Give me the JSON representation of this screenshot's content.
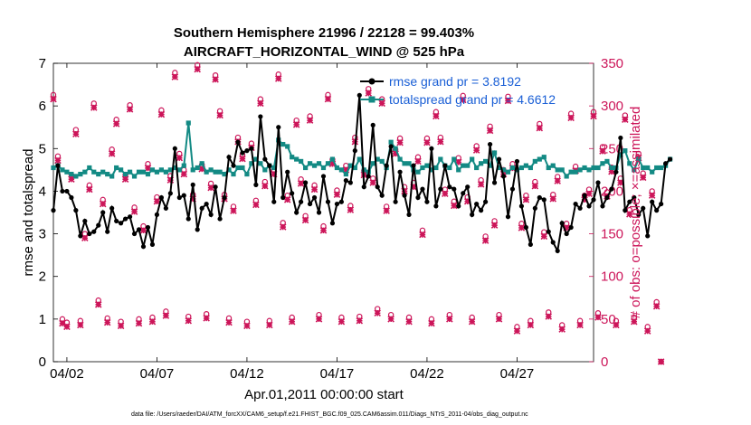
{
  "chart_data": {
    "type": "line",
    "title": "Southern Hemisphere 21996 / 22128 = 99.403%",
    "subtitle": "AIRCRAFT_HORIZONTAL_WIND @ 525 hPa",
    "xlabel": "Apr.01,2011 00:00:00 start",
    "ylabel_left": "rmse and totalspread",
    "ylabel_right": "# of obs: o=possible; ×=assimilated",
    "footnote": "data file: /Users/raeder/DAI/ATM_forcXX/CAM6_setup/f.e21.FHIST_BGC.f09_025.CAM6assim.011/Diags_NTrS_2011-04/obs_diag_output.nc",
    "x_ticks": [
      {
        "label": "04/02",
        "day": 2
      },
      {
        "label": "04/07",
        "day": 7
      },
      {
        "label": "04/12",
        "day": 12
      },
      {
        "label": "04/17",
        "day": 17
      },
      {
        "label": "04/22",
        "day": 22
      },
      {
        "label": "04/27",
        "day": 27
      }
    ],
    "xlim": [
      1.25,
      31.25
    ],
    "ylim_left": [
      0,
      7
    ],
    "yticks_left": [
      0,
      1,
      2,
      3,
      4,
      5,
      6,
      7
    ],
    "ylim_right": [
      0,
      350
    ],
    "yticks_right": [
      0,
      50,
      100,
      150,
      200,
      250,
      300,
      350
    ],
    "colors": {
      "rmse": "#000000",
      "spread": "#138a84",
      "obs": "#cc1559",
      "legend_text": "#1a5fd6"
    },
    "legend_position": "top-right",
    "series": [
      {
        "name": "rmse grand pr = 3.8192",
        "axis": "left",
        "start_day": 1.25,
        "step_days": 0.25,
        "values": [
          3.55,
          4.6,
          4.0,
          4.0,
          3.85,
          3.55,
          2.95,
          3.3,
          3.0,
          3.05,
          3.2,
          3.5,
          3.05,
          3.6,
          3.3,
          3.25,
          3.35,
          3.4,
          3.0,
          3.1,
          2.7,
          3.15,
          2.75,
          3.45,
          3.85,
          3.6,
          3.95,
          5.0,
          3.85,
          3.9,
          3.35,
          4.15,
          3.1,
          3.6,
          3.7,
          3.45,
          4.1,
          3.35,
          3.85,
          4.8,
          4.6,
          5.15,
          4.9,
          4.95,
          5.0,
          4.15,
          5.75,
          4.75,
          4.6,
          3.75,
          5.5,
          3.85,
          4.45,
          3.95,
          3.5,
          3.75,
          4.2,
          3.7,
          3.85,
          3.5,
          4.35,
          3.75,
          3.25,
          3.7,
          3.75,
          4.25,
          4.2,
          4.95,
          6.25,
          4.1,
          4.35,
          5.55,
          4.1,
          3.9,
          4.6,
          5.05,
          3.75,
          4.45,
          3.9,
          3.45,
          4.6,
          3.85,
          4.05,
          3.75,
          5.0,
          3.65,
          4.05,
          4.6,
          4.1,
          4.05,
          3.65,
          3.95,
          4.1,
          3.45,
          3.7,
          3.55,
          3.75,
          5.1,
          4.2,
          4.75,
          4.35,
          3.4,
          4.05,
          4.7,
          3.65,
          3.15,
          2.75,
          3.6,
          3.85,
          3.8,
          3.05,
          2.8,
          2.6,
          3.25,
          3.0,
          3.15,
          3.7,
          3.6,
          3.9,
          3.65,
          3.8,
          4.2,
          3.65,
          3.85,
          4.05,
          4.45,
          5.25,
          3.55,
          3.75,
          3.85,
          3.45,
          3.6,
          2.95,
          3.75,
          3.55,
          3.7,
          4.65,
          4.75
        ]
      },
      {
        "name": "totalspread grand pr = 4.6612",
        "axis": "left",
        "start_day": 1.25,
        "step_days": 0.25,
        "values": [
          4.55,
          4.6,
          4.5,
          4.45,
          4.4,
          4.35,
          4.4,
          4.45,
          4.55,
          4.45,
          4.4,
          4.45,
          4.4,
          4.35,
          4.55,
          4.5,
          4.4,
          4.45,
          4.35,
          4.45,
          4.45,
          4.4,
          4.5,
          4.45,
          4.5,
          4.45,
          4.5,
          4.55,
          4.5,
          4.6,
          5.6,
          4.5,
          4.55,
          4.65,
          4.45,
          4.5,
          4.45,
          4.45,
          4.4,
          4.5,
          4.4,
          4.55,
          4.55,
          4.4,
          4.65,
          4.75,
          4.65,
          4.5,
          4.6,
          4.55,
          5.2,
          5.1,
          5.05,
          4.8,
          4.75,
          4.7,
          4.55,
          4.65,
          4.6,
          4.65,
          4.55,
          4.65,
          4.75,
          4.55,
          4.5,
          4.4,
          4.6,
          4.55,
          4.75,
          4.5,
          4.45,
          4.65,
          4.75,
          4.7,
          4.55,
          5.15,
          5.0,
          4.75,
          4.65,
          4.65,
          4.5,
          4.45,
          4.55,
          4.6,
          4.5,
          4.55,
          4.75,
          4.6,
          4.55,
          4.75,
          4.5,
          4.6,
          4.6,
          4.75,
          4.55,
          4.65,
          4.7,
          4.6,
          4.9,
          4.55,
          4.5,
          4.45,
          4.55,
          4.5,
          4.55,
          4.6,
          4.55,
          4.7,
          4.75,
          4.8,
          4.55,
          4.6,
          4.5,
          4.5,
          4.35,
          4.45,
          4.45,
          4.5,
          4.55,
          4.5,
          4.55,
          4.55,
          4.65,
          4.7,
          4.55,
          4.55,
          4.85,
          4.95,
          4.65,
          4.5,
          4.75,
          4.55,
          4.55,
          4.45,
          4.55,
          4.55,
          4.6,
          4.75
        ]
      },
      {
        "name": "obs possible",
        "axis": "right",
        "marker": "o",
        "start_day": 1.25,
        "step_days": 0.25,
        "values": [
          313,
          241,
          50,
          46,
          219,
          272,
          48,
          150,
          207,
          303,
          72,
          190,
          51,
          249,
          284,
          47,
          219,
          301,
          181,
          50,
          159,
          232,
          52,
          193,
          295,
          59,
          218,
          339,
          244,
          225,
          53,
          196,
          348,
          231,
          56,
          209,
          336,
          294,
          196,
          51,
          182,
          263,
          243,
          47,
          256,
          189,
          308,
          211,
          48,
          225,
          337,
          163,
          195,
          52,
          283,
          214,
          171,
          288,
          207,
          55,
          159,
          313,
          237,
          201,
          52,
          230,
          183,
          263,
          53,
          224,
          320,
          215,
          62,
          308,
          182,
          55,
          249,
          262,
          205,
          52,
          210,
          240,
          154,
          262,
          50,
          293,
          263,
          202,
          55,
          188,
          239,
          312,
          193,
          52,
          253,
          213,
          147,
          276,
          165,
          55,
          225,
          311,
          232,
          41,
          162,
          195,
          48,
          211,
          279,
          152,
          58,
          196,
          217,
          43,
          162,
          291,
          229,
          48,
          195,
          202,
          293,
          57,
          252,
          199,
          228,
          48,
          215,
          289,
          178,
          52,
          244,
          221,
          41,
          200,
          70,
          0
        ]
      },
      {
        "name": "obs assimilated",
        "axis": "right",
        "marker": "x",
        "start_day": 1.25,
        "step_days": 0.25,
        "values": [
          308,
          236,
          45,
          41,
          214,
          267,
          43,
          145,
          202,
          298,
          67,
          185,
          46,
          244,
          279,
          42,
          214,
          296,
          176,
          45,
          154,
          227,
          47,
          188,
          290,
          54,
          213,
          334,
          239,
          220,
          48,
          191,
          343,
          226,
          51,
          204,
          331,
          289,
          191,
          46,
          177,
          258,
          238,
          42,
          251,
          184,
          303,
          206,
          43,
          220,
          332,
          158,
          190,
          47,
          278,
          209,
          166,
          283,
          202,
          50,
          154,
          308,
          232,
          196,
          47,
          225,
          178,
          258,
          48,
          219,
          315,
          210,
          57,
          303,
          177,
          50,
          244,
          257,
          200,
          47,
          205,
          235,
          149,
          257,
          45,
          288,
          258,
          197,
          50,
          183,
          234,
          307,
          188,
          47,
          248,
          208,
          142,
          271,
          160,
          50,
          220,
          306,
          227,
          36,
          157,
          190,
          43,
          206,
          274,
          147,
          53,
          191,
          212,
          38,
          157,
          286,
          224,
          43,
          190,
          197,
          288,
          52,
          247,
          194,
          223,
          43,
          210,
          284,
          173,
          47,
          239,
          216,
          36,
          195,
          65,
          0
        ]
      }
    ]
  }
}
